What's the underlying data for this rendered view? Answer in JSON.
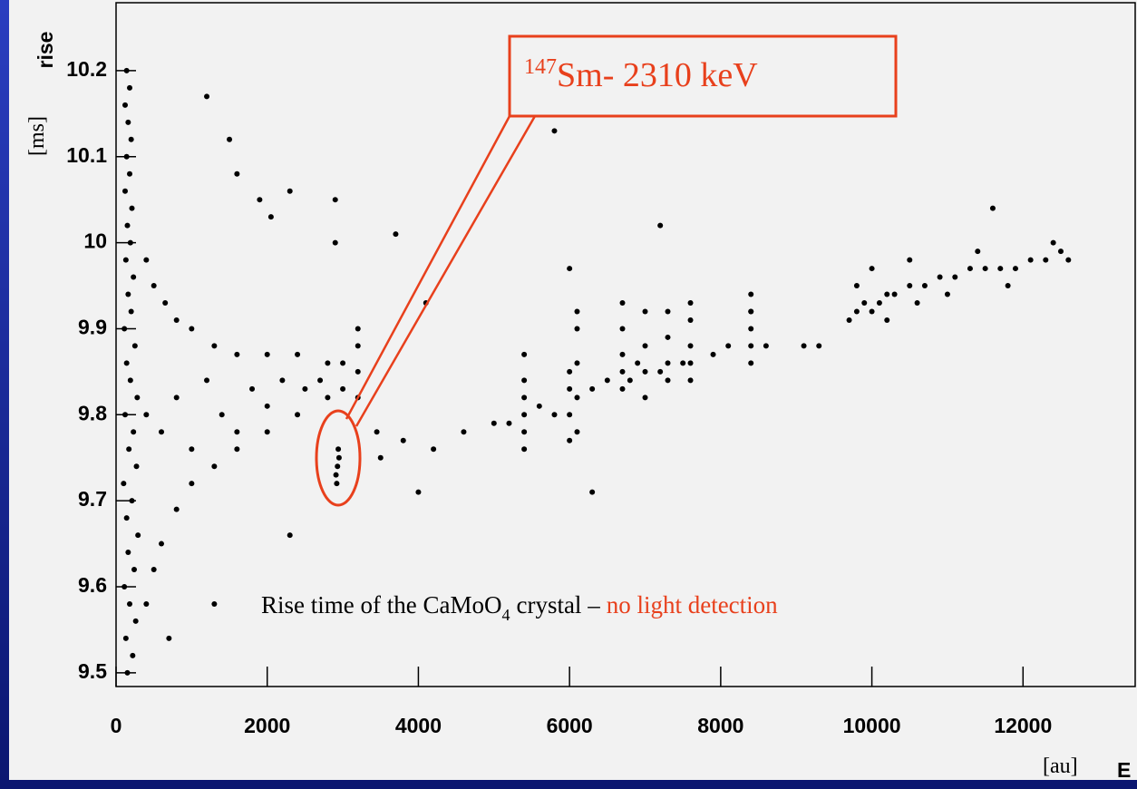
{
  "chart_data": {
    "type": "scatter",
    "y_label": "rise",
    "y_unit": "[ms]",
    "x_label": "E",
    "x_unit": "[au]",
    "annotation": {
      "superscript": "147",
      "text": "Sm- 2310 keV"
    },
    "caption": {
      "text": "Rise time of the CaMoO",
      "subscript": "4",
      "text2": "crystal –",
      "highlight": "no light detection"
    },
    "color": "#000000",
    "xlim": [
      0,
      13460
    ],
    "ylim": [
      9.484,
      10.279
    ],
    "xticks": [
      0,
      2000,
      4000,
      6000,
      8000,
      10000,
      12000
    ],
    "yticks": [
      9.5,
      9.6,
      9.7,
      9.8,
      9.9,
      10,
      10.1,
      10.2
    ],
    "x": [
      150,
      220,
      130,
      260,
      180,
      110,
      240,
      160,
      290,
      140,
      210,
      100,
      270,
      170,
      230,
      120,
      280,
      190,
      140,
      250,
      110,
      200,
      160,
      230,
      130,
      190,
      150,
      210,
      120,
      180,
      140,
      200,
      160,
      120,
      180,
      140,
      400,
      500,
      600,
      800,
      1000,
      1300,
      1600,
      2000,
      2400,
      2800,
      400,
      500,
      650,
      800,
      1000,
      1300,
      1600,
      2000,
      2400,
      2800,
      3000,
      400,
      600,
      800,
      1000,
      1200,
      1400,
      1600,
      1800,
      2000,
      2200,
      2500,
      2700,
      3000,
      3200,
      3200,
      3200,
      3200,
      1200,
      1600,
      1500,
      1900,
      2300,
      2050,
      2900,
      2900,
      3700,
      4100,
      2300,
      1300,
      700,
      3450,
      3800,
      4200,
      4600,
      3500,
      4000,
      6300,
      7200,
      5800,
      6000,
      8400,
      9100,
      9300,
      2920,
      2930,
      2940,
      2910,
      2950,
      5000,
      5200,
      5400,
      5400,
      5400,
      5400,
      5400,
      5400,
      5600,
      5800,
      6000,
      6000,
      6000,
      6000,
      6100,
      6100,
      6100,
      6100,
      6100,
      6300,
      6500,
      6700,
      6700,
      6700,
      6700,
      6700,
      6800,
      6900,
      7000,
      7000,
      7000,
      7000,
      7200,
      7300,
      7300,
      7300,
      7300,
      7500,
      7600,
      7600,
      7600,
      7600,
      7600,
      7900,
      8100,
      8400,
      8400,
      8400,
      8400,
      8400,
      8600,
      9700,
      9800,
      9900,
      10000,
      10100,
      10200,
      10300,
      10500,
      10700,
      10900,
      11100,
      11300,
      11500,
      11700,
      11900,
      12100,
      12300,
      12500,
      12600,
      9800,
      10200,
      10600,
      11000,
      11400,
      11800,
      12400,
      11600,
      10500,
      10000
    ],
    "values": [
      9.5,
      9.52,
      9.54,
      9.56,
      9.58,
      9.6,
      9.62,
      9.64,
      9.66,
      9.68,
      9.7,
      9.72,
      9.74,
      9.76,
      9.78,
      9.8,
      9.82,
      9.84,
      9.86,
      9.88,
      9.9,
      9.92,
      9.94,
      9.96,
      9.98,
      10.0,
      10.02,
      10.04,
      10.06,
      10.08,
      10.1,
      10.12,
      10.14,
      10.16,
      10.18,
      10.2,
      9.58,
      9.62,
      9.65,
      9.69,
      9.72,
      9.74,
      9.76,
      9.78,
      9.8,
      9.82,
      9.98,
      9.95,
      9.93,
      9.91,
      9.9,
      9.88,
      9.87,
      9.87,
      9.87,
      9.86,
      9.86,
      9.8,
      9.78,
      9.82,
      9.76,
      9.84,
      9.8,
      9.78,
      9.83,
      9.81,
      9.84,
      9.83,
      9.84,
      9.83,
      9.85,
      9.88,
      9.82,
      9.9,
      10.17,
      10.08,
      10.12,
      10.05,
      10.06,
      10.03,
      10.05,
      10.0,
      10.01,
      9.93,
      9.66,
      9.58,
      9.54,
      9.78,
      9.77,
      9.76,
      9.78,
      9.75,
      9.71,
      9.71,
      10.02,
      10.13,
      9.97,
      9.92,
      9.88,
      9.88,
      9.72,
      9.74,
      9.76,
      9.73,
      9.75,
      9.79,
      9.79,
      9.76,
      9.78,
      9.8,
      9.82,
      9.84,
      9.87,
      9.81,
      9.8,
      9.77,
      9.8,
      9.83,
      9.85,
      9.78,
      9.82,
      9.86,
      9.9,
      9.92,
      9.83,
      9.84,
      9.83,
      9.85,
      9.87,
      9.9,
      9.93,
      9.84,
      9.86,
      9.82,
      9.85,
      9.88,
      9.92,
      9.85,
      9.84,
      9.86,
      9.89,
      9.92,
      9.86,
      9.84,
      9.86,
      9.88,
      9.91,
      9.93,
      9.87,
      9.88,
      9.86,
      9.88,
      9.9,
      9.92,
      9.94,
      9.88,
      9.91,
      9.92,
      9.93,
      9.92,
      9.93,
      9.94,
      9.94,
      9.95,
      9.95,
      9.96,
      9.96,
      9.97,
      9.97,
      9.97,
      9.97,
      9.98,
      9.98,
      9.99,
      9.98,
      9.95,
      9.91,
      9.93,
      9.94,
      9.99,
      9.95,
      10.0,
      10.04,
      9.98,
      9.97
    ]
  }
}
